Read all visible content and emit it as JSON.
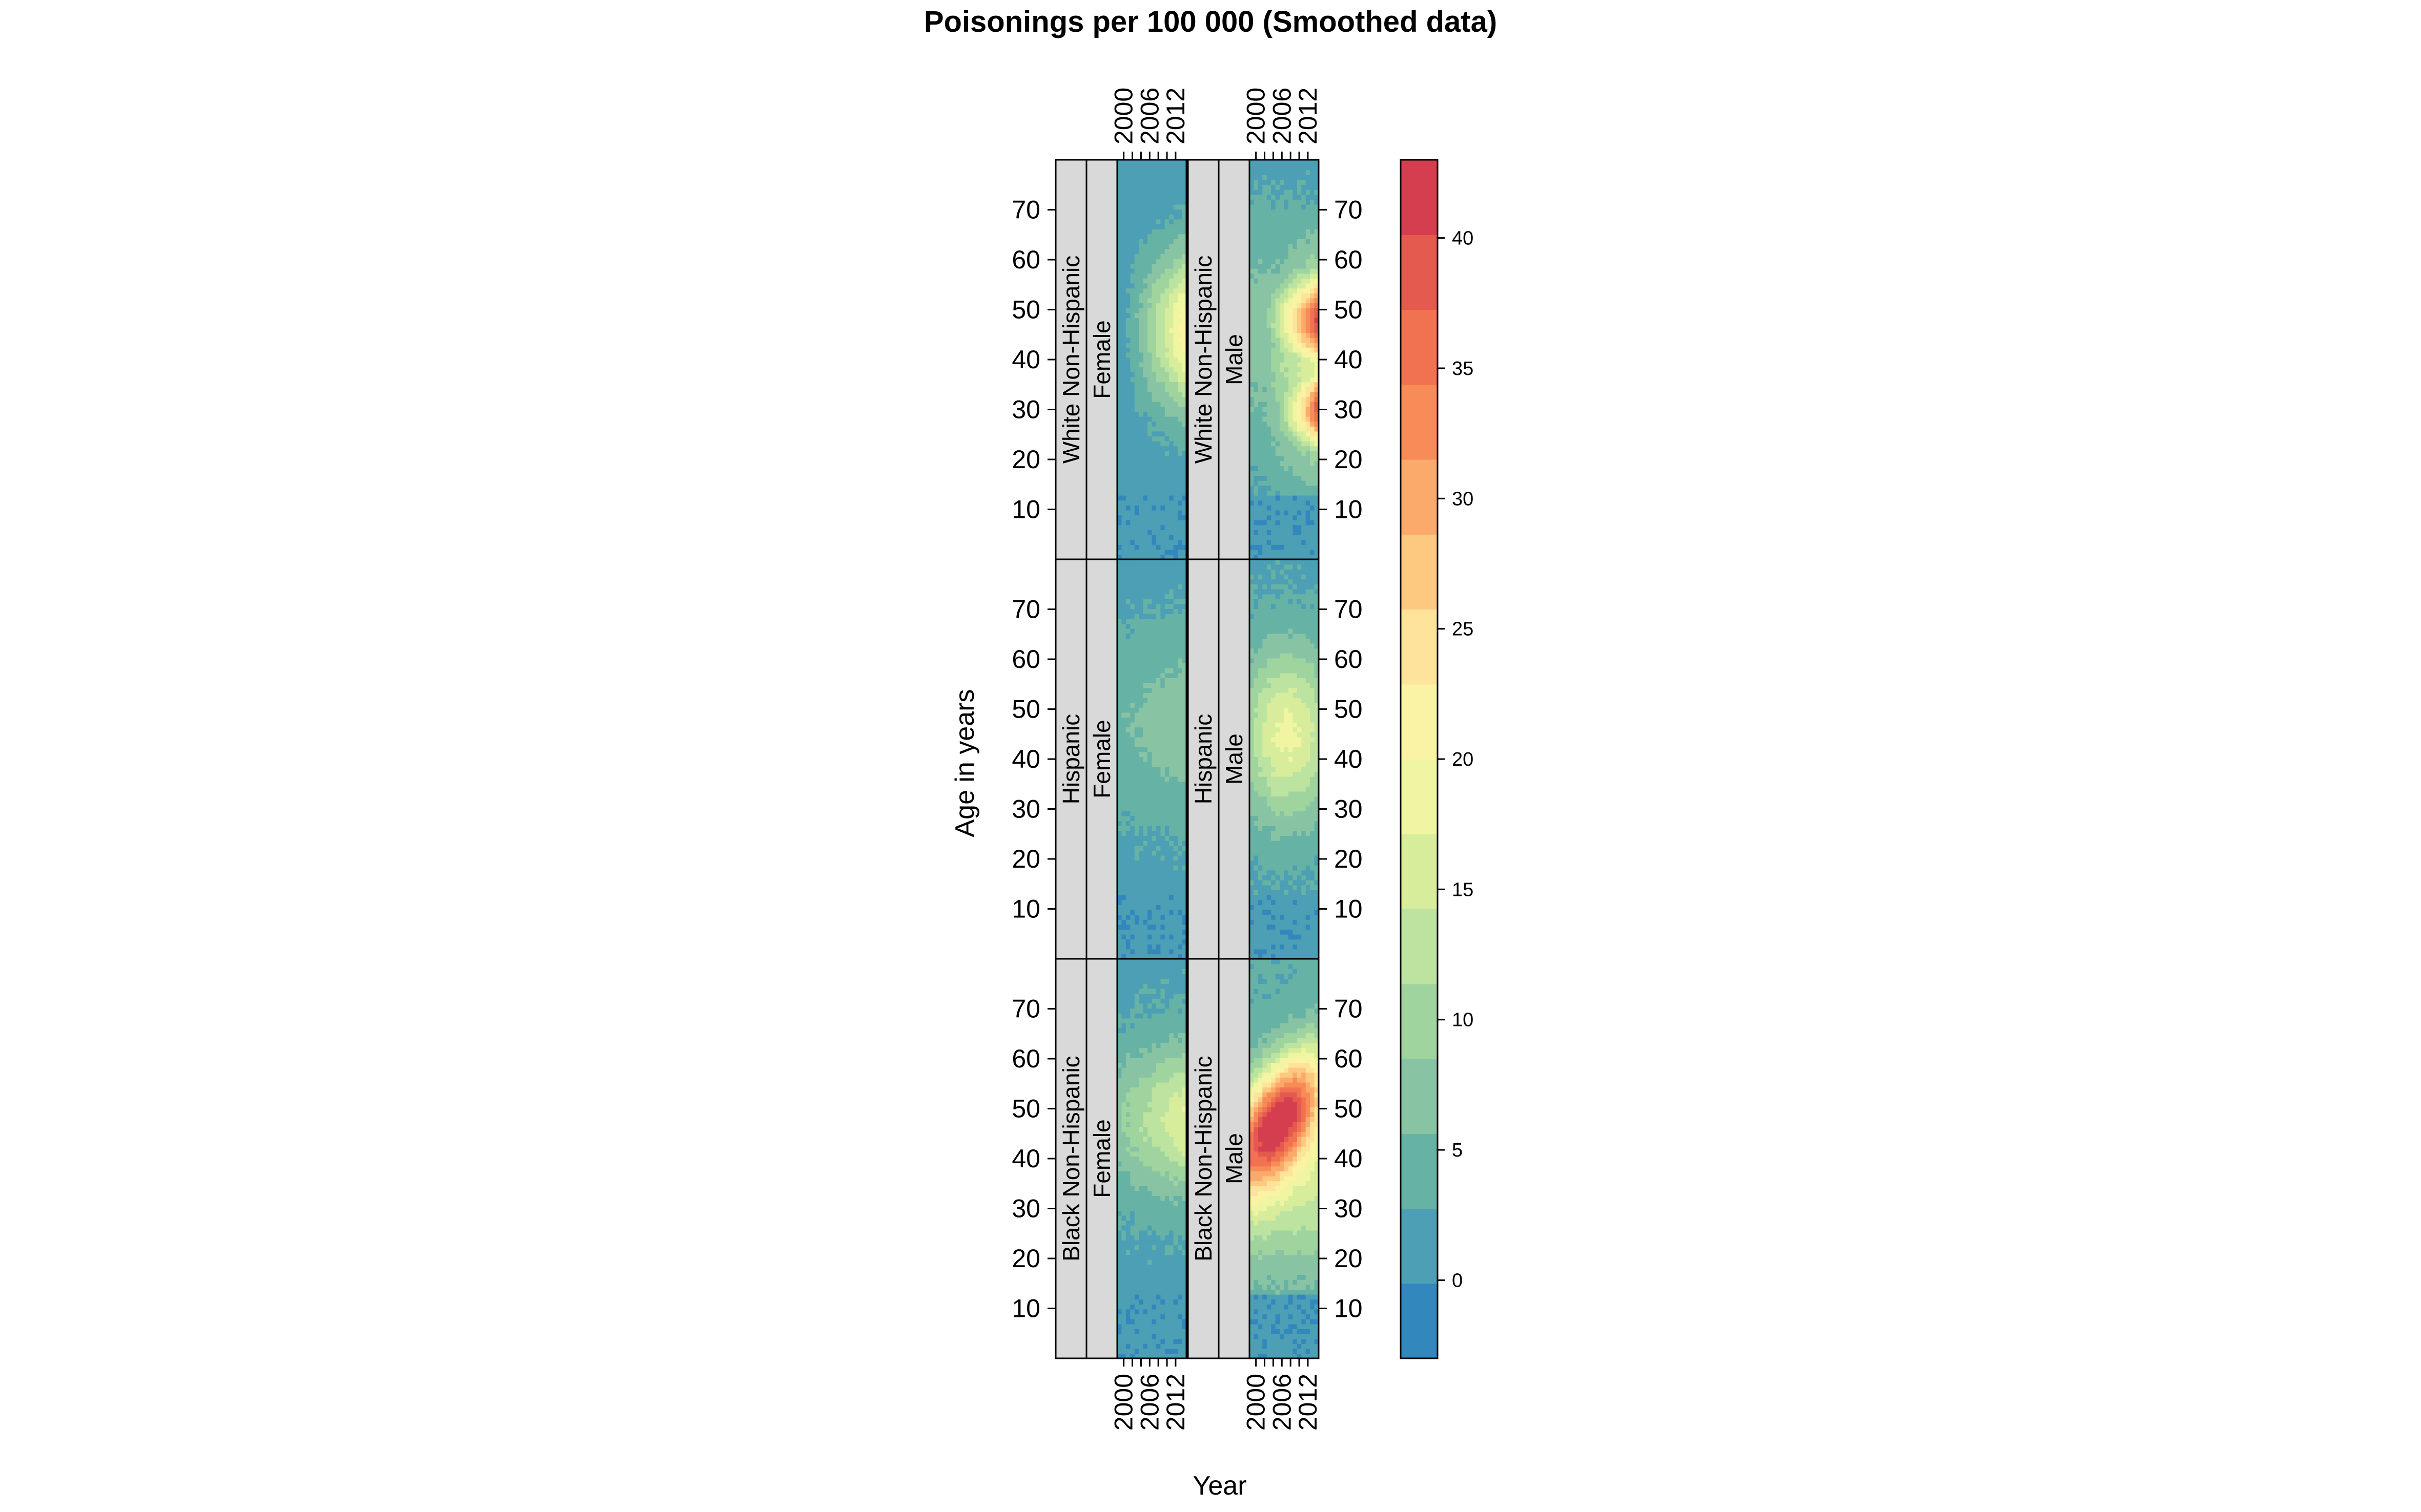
{
  "chart_data": {
    "type": "heatmap",
    "title": "Poisonings per 100 000 (Smoothed data)",
    "xlabel": "Year",
    "ylabel": "Age in years",
    "x_range": [
      1999,
      2014
    ],
    "y_range": [
      0,
      80
    ],
    "x_ticks": [
      "2000",
      "2006",
      "2012"
    ],
    "y_ticks": [
      "10",
      "20",
      "30",
      "40",
      "50",
      "60",
      "70"
    ],
    "colorbar": {
      "ticks": [
        "0",
        "5",
        "10",
        "15",
        "20",
        "25",
        "30",
        "35",
        "40"
      ],
      "min": -3,
      "max": 43,
      "colors": [
        "#3288bd",
        "#4c9fb4",
        "#66b2a5",
        "#88c4a4",
        "#9fd49f",
        "#bce3a0",
        "#d7ed9c",
        "#eff5a0",
        "#fbf3a4",
        "#fde49a",
        "#fdc880",
        "#fcaa6c",
        "#f88c58",
        "#f07250",
        "#e45a4f",
        "#d53e4f"
      ]
    },
    "panels": [
      {
        "race": "White Non-Hispanic",
        "sex": "Female",
        "peak_age": 46,
        "peak_year": 2011,
        "peak_value": 22,
        "summary": "rates rise strongly over time for ages 25-65, peaking near age 45-50 in the latest years"
      },
      {
        "race": "White Non-Hispanic",
        "sex": "Male",
        "peak_age": 30,
        "peak_year": 2013,
        "peak_value": 40,
        "summary": "two high-rate centres near ages 28-32 and 45-50, rising sharply after 2006"
      },
      {
        "race": "Hispanic",
        "sex": "Female",
        "peak_age": 48,
        "peak_year": 2010,
        "peak_value": 7,
        "summary": "low rates throughout, slight rise for ages 35-60"
      },
      {
        "race": "Hispanic",
        "sex": "Male",
        "peak_age": 45,
        "peak_year": 2008,
        "peak_value": 18,
        "summary": "moderate rates for ages 25-65"
      },
      {
        "race": "Black Non-Hispanic",
        "sex": "Female",
        "peak_age": 48,
        "peak_year": 2010,
        "peak_value": 16,
        "summary": "moderate rates peaking around ages 40-55"
      },
      {
        "race": "Black Non-Hispanic",
        "sex": "Male",
        "peak_age": 52,
        "peak_year": 2007,
        "peak_value": 38,
        "summary": "high rates for ages 45-58, moving to older ages over time"
      }
    ]
  }
}
